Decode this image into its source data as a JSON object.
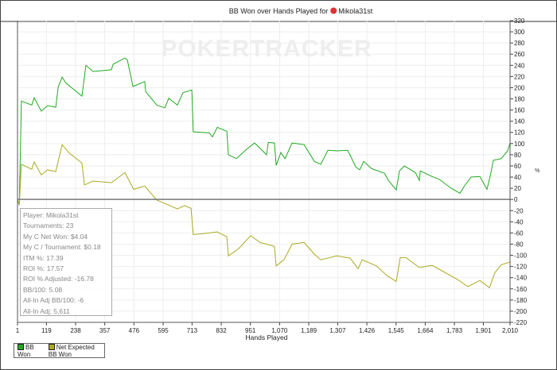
{
  "chart_data": {
    "type": "line",
    "title": "BB Won over Hands Played for",
    "title_player": "Mikola31st",
    "xlabel": "Hands Played",
    "ylabel": "",
    "xlim": [
      1,
      2010
    ],
    "ylim": [
      -220,
      320
    ],
    "x_ticks": [
      "1",
      "119",
      "238",
      "357",
      "476",
      "595",
      "713",
      "832",
      "951",
      "1,070",
      "1,189",
      "1,307",
      "1,426",
      "1,545",
      "1,664",
      "1,783",
      "1,901",
      "2,010"
    ],
    "x_tick_values": [
      1,
      119,
      238,
      357,
      476,
      595,
      713,
      832,
      951,
      1070,
      1189,
      1307,
      1426,
      1545,
      1664,
      1783,
      1901,
      2010
    ],
    "y_ticks": [
      320,
      300,
      280,
      260,
      240,
      220,
      200,
      180,
      160,
      140,
      120,
      100,
      80,
      60,
      40,
      20,
      0,
      -20,
      -40,
      -60,
      -80,
      -100,
      -120,
      -140,
      -160,
      -180,
      -200,
      -220
    ],
    "grid": true,
    "legend_placement": "bottom-left",
    "watermark": "POKERTRACKER",
    "series": [
      {
        "name": "BB Won",
        "color": "#22aa22",
        "points": [
          [
            1,
            0
          ],
          [
            8,
            -10
          ],
          [
            17,
            176
          ],
          [
            59,
            169
          ],
          [
            69,
            182
          ],
          [
            98,
            158
          ],
          [
            124,
            168
          ],
          [
            157,
            165
          ],
          [
            167,
            201
          ],
          [
            183,
            219
          ],
          [
            199,
            208
          ],
          [
            264,
            185
          ],
          [
            280,
            240
          ],
          [
            309,
            229
          ],
          [
            384,
            232
          ],
          [
            391,
            242
          ],
          [
            439,
            253
          ],
          [
            449,
            250
          ],
          [
            472,
            202
          ],
          [
            520,
            211
          ],
          [
            524,
            193
          ],
          [
            569,
            169
          ],
          [
            602,
            164
          ],
          [
            618,
            181
          ],
          [
            653,
            169
          ],
          [
            676,
            191
          ],
          [
            712,
            196
          ],
          [
            718,
            121
          ],
          [
            783,
            119
          ],
          [
            796,
            112
          ],
          [
            816,
            129
          ],
          [
            855,
            122
          ],
          [
            861,
            80
          ],
          [
            894,
            73
          ],
          [
            936,
            90
          ],
          [
            968,
            101
          ],
          [
            1017,
            80
          ],
          [
            1024,
            102
          ],
          [
            1049,
            101
          ],
          [
            1056,
            61
          ],
          [
            1075,
            84
          ],
          [
            1092,
            73
          ],
          [
            1121,
            101
          ],
          [
            1170,
            98
          ],
          [
            1212,
            68
          ],
          [
            1238,
            63
          ],
          [
            1267,
            88
          ],
          [
            1303,
            87
          ],
          [
            1348,
            88
          ],
          [
            1381,
            58
          ],
          [
            1397,
            53
          ],
          [
            1413,
            68
          ],
          [
            1446,
            55
          ],
          [
            1498,
            47
          ],
          [
            1514,
            34
          ],
          [
            1546,
            17
          ],
          [
            1559,
            51
          ],
          [
            1579,
            60
          ],
          [
            1624,
            48
          ],
          [
            1640,
            34
          ],
          [
            1644,
            51
          ],
          [
            1692,
            41
          ],
          [
            1721,
            36
          ],
          [
            1770,
            20
          ],
          [
            1806,
            11
          ],
          [
            1822,
            23
          ],
          [
            1851,
            40
          ],
          [
            1887,
            41
          ],
          [
            1916,
            18
          ],
          [
            1932,
            48
          ],
          [
            1942,
            70
          ],
          [
            1974,
            73
          ],
          [
            2000,
            87
          ],
          [
            2010,
            101
          ]
        ]
      },
      {
        "name": "Net Expected BB Won",
        "color": "#aaaa22",
        "points": [
          [
            1,
            0
          ],
          [
            8,
            -10
          ],
          [
            17,
            63
          ],
          [
            59,
            54
          ],
          [
            69,
            67
          ],
          [
            98,
            44
          ],
          [
            124,
            53
          ],
          [
            157,
            50
          ],
          [
            183,
            98
          ],
          [
            212,
            83
          ],
          [
            264,
            65
          ],
          [
            274,
            26
          ],
          [
            309,
            33
          ],
          [
            384,
            30
          ],
          [
            439,
            48
          ],
          [
            475,
            18
          ],
          [
            520,
            24
          ],
          [
            569,
            -1
          ],
          [
            653,
            -17
          ],
          [
            683,
            -11
          ],
          [
            709,
            -16
          ],
          [
            718,
            -63
          ],
          [
            783,
            -60
          ],
          [
            816,
            -58
          ],
          [
            855,
            -67
          ],
          [
            861,
            -101
          ],
          [
            903,
            -88
          ],
          [
            952,
            -65
          ],
          [
            991,
            -77
          ],
          [
            1049,
            -84
          ],
          [
            1056,
            -119
          ],
          [
            1088,
            -108
          ],
          [
            1121,
            -80
          ],
          [
            1170,
            -77
          ],
          [
            1212,
            -98
          ],
          [
            1238,
            -108
          ],
          [
            1303,
            -101
          ],
          [
            1358,
            -105
          ],
          [
            1390,
            -124
          ],
          [
            1407,
            -108
          ],
          [
            1465,
            -119
          ],
          [
            1510,
            -137
          ],
          [
            1546,
            -147
          ],
          [
            1562,
            -104
          ],
          [
            1585,
            -104
          ],
          [
            1640,
            -122
          ],
          [
            1692,
            -118
          ],
          [
            1738,
            -129
          ],
          [
            1802,
            -145
          ],
          [
            1838,
            -156
          ],
          [
            1887,
            -145
          ],
          [
            1926,
            -158
          ],
          [
            1948,
            -131
          ],
          [
            1974,
            -117
          ],
          [
            2010,
            -112
          ]
        ]
      }
    ]
  },
  "stats": [
    "Player: Mikola31st",
    "Tournaments: 23",
    "My C Net Won: $4.04",
    "My C / Tournament: $0.18",
    "ITM %: 17.39",
    "ROI %: 17.57",
    "ROI % Adjusted: -16.78",
    "BB/100: 5.08",
    "All-In Adj BB/100: -6",
    "All-In Adj: 5,611"
  ],
  "side_icon": "percent-icon",
  "side_glyph": "%"
}
